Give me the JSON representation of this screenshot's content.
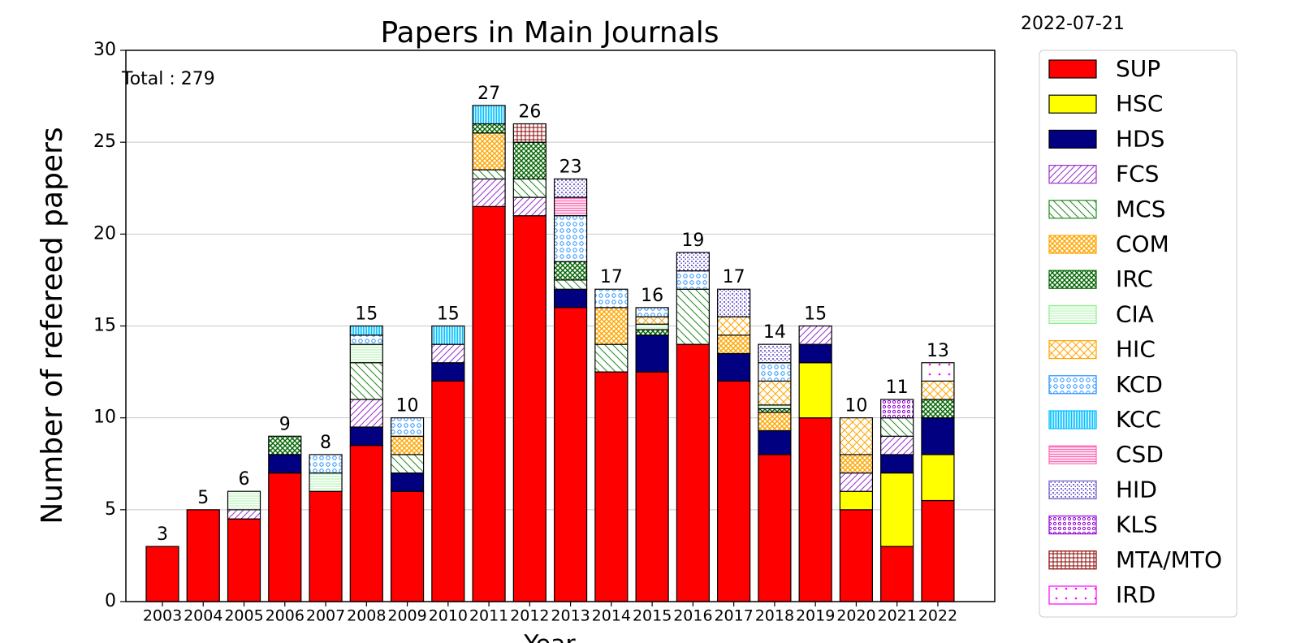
{
  "chart_data": {
    "type": "stacked_bar",
    "title": "Papers in Main Journals",
    "date": "2022-07-21",
    "xlabel": "Year",
    "ylabel": "Number of refereed papers",
    "annotation": "Total : 279",
    "categories": [
      "2003",
      "2004",
      "2005",
      "2006",
      "2007",
      "2008",
      "2009",
      "2010",
      "2011",
      "2012",
      "2013",
      "2014",
      "2015",
      "2016",
      "2017",
      "2018",
      "2019",
      "2020",
      "2021",
      "2022"
    ],
    "totals": [
      3,
      5,
      6,
      9,
      8,
      15,
      10,
      15,
      27,
      26,
      23,
      17,
      16,
      19,
      17,
      14,
      15,
      10,
      11,
      13
    ],
    "ylim": [
      0,
      30
    ],
    "yticks": [
      0,
      5,
      10,
      15,
      20,
      25,
      30
    ],
    "grid": true,
    "series": [
      {
        "name": "SUP",
        "color": "#ff0000",
        "hatch": "",
        "values": [
          3,
          5,
          4.5,
          7,
          6,
          8.5,
          6,
          12,
          21.5,
          21,
          16,
          12.5,
          12.5,
          14,
          12,
          8,
          10,
          5,
          3,
          5.5
        ]
      },
      {
        "name": "HSC",
        "color": "#ffff00",
        "hatch": "",
        "values": [
          0,
          0,
          0,
          0,
          0,
          0,
          0,
          0,
          0,
          0,
          0,
          0,
          0,
          0,
          0,
          0,
          3,
          1,
          4,
          2.5
        ]
      },
      {
        "name": "HDS",
        "color": "#000080",
        "hatch": "",
        "values": [
          0,
          0,
          0,
          1,
          0,
          1,
          1,
          1,
          0,
          0,
          1,
          0,
          2,
          0,
          1.5,
          1.3,
          1,
          0,
          1,
          2
        ]
      },
      {
        "name": "FCS",
        "color": "#9932cc",
        "hatch": "////",
        "values": [
          0,
          0,
          0.5,
          0,
          0,
          1.5,
          0,
          1,
          1.5,
          1,
          0,
          0,
          0,
          0,
          0,
          0,
          1,
          1,
          1,
          0
        ]
      },
      {
        "name": "MCS",
        "color": "#228b22",
        "hatch": "\\\\\\\\",
        "values": [
          0,
          0,
          0,
          0,
          0,
          2,
          1,
          0,
          0.5,
          1,
          0.5,
          1.5,
          0,
          3,
          0,
          0,
          0,
          0,
          1,
          0
        ]
      },
      {
        "name": "COM",
        "color": "#ffa500",
        "hatch": "xxxx",
        "values": [
          0,
          0,
          0,
          0,
          0,
          0,
          1,
          0,
          2,
          0,
          0,
          2,
          0,
          0,
          1,
          1,
          0,
          1,
          0,
          0
        ]
      },
      {
        "name": "IRC",
        "color": "#006400",
        "hatch": "xxxx",
        "values": [
          0,
          0,
          0,
          1,
          0,
          0,
          0,
          0,
          0.5,
          2,
          1,
          0,
          0.3,
          0,
          0,
          0.2,
          0,
          0,
          0,
          1
        ]
      },
      {
        "name": "CIA",
        "color": "#90ee90",
        "hatch": "---",
        "values": [
          0,
          0,
          1,
          0,
          1,
          1,
          0,
          0,
          0,
          0,
          0,
          0,
          0.3,
          0,
          0,
          0.2,
          0,
          0,
          0,
          0
        ]
      },
      {
        "name": "HIC",
        "color": "#ffa500",
        "hatch": "xx",
        "values": [
          0,
          0,
          0,
          0,
          0,
          0,
          0,
          0,
          0,
          0,
          0,
          0,
          0.4,
          0,
          1,
          1.3,
          0,
          2,
          0,
          1
        ]
      },
      {
        "name": "KCD",
        "color": "#1e90ff",
        "hatch": "o",
        "values": [
          0,
          0,
          0,
          0,
          1,
          0.5,
          1,
          0,
          0,
          0,
          2.5,
          1,
          0.5,
          1,
          0,
          1,
          0,
          0,
          0,
          0
        ]
      },
      {
        "name": "KCC",
        "color": "#00bfff",
        "hatch": "|||",
        "values": [
          0,
          0,
          0,
          0,
          0,
          0.5,
          0,
          1,
          1,
          0,
          0,
          0,
          0,
          0,
          0,
          0,
          0,
          0,
          0,
          0
        ]
      },
      {
        "name": "CSD",
        "color": "#ff69b4",
        "hatch": "===",
        "values": [
          0,
          0,
          0,
          0,
          0,
          0,
          0,
          0,
          0,
          0,
          1,
          0,
          0,
          0,
          0,
          0,
          0,
          0,
          0,
          0
        ]
      },
      {
        "name": "HID",
        "color": "#6a5acd",
        "hatch": "...",
        "values": [
          0,
          0,
          0,
          0,
          0,
          0,
          0,
          0,
          0,
          0,
          1,
          0,
          0,
          1,
          1.5,
          1,
          0,
          0,
          0,
          0
        ]
      },
      {
        "name": "KLS",
        "color": "#9400d3",
        "hatch": "oo",
        "values": [
          0,
          0,
          0,
          0,
          0,
          0,
          0,
          0,
          0,
          0,
          0,
          0,
          0,
          0,
          0,
          0,
          0,
          0,
          1,
          0
        ]
      },
      {
        "name": "MTA/MTO",
        "color": "#8b0000",
        "hatch": "++",
        "values": [
          0,
          0,
          0,
          0,
          0,
          0,
          0,
          0,
          0,
          1,
          0,
          0,
          0,
          0,
          0,
          0,
          0,
          0,
          0,
          0
        ]
      },
      {
        "name": "IRD",
        "color": "#ff00ff",
        "hatch": ".",
        "values": [
          0,
          0,
          0,
          0,
          0,
          0,
          0,
          0,
          0,
          0,
          0,
          0,
          0,
          0,
          0,
          0,
          0,
          0,
          0,
          1
        ]
      }
    ]
  }
}
